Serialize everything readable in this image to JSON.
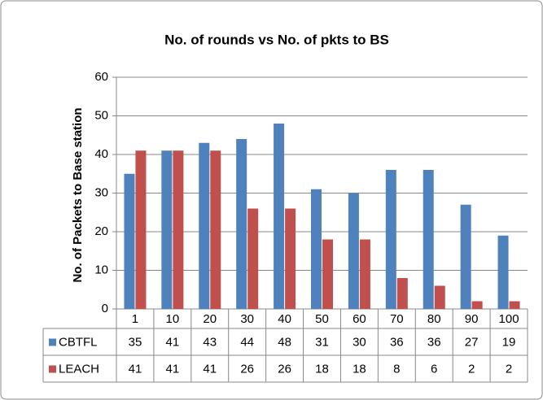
{
  "chart_data": {
    "type": "bar",
    "title": "No. of rounds vs No. of pkts to BS",
    "y_label": "No. of Packets to Base station",
    "categories": [
      "1",
      "10",
      "20",
      "30",
      "40",
      "50",
      "60",
      "70",
      "80",
      "90",
      "100"
    ],
    "series": [
      {
        "name": "CBTFL",
        "color": "#4f81bd",
        "values": [
          35,
          41,
          43,
          44,
          48,
          31,
          30,
          36,
          36,
          27,
          19
        ]
      },
      {
        "name": "LEACH",
        "color": "#c0504d",
        "values": [
          41,
          41,
          41,
          26,
          26,
          18,
          18,
          8,
          6,
          2,
          2
        ]
      }
    ],
    "ylim": [
      0,
      60
    ],
    "yticks": [
      0,
      10,
      20,
      30,
      40,
      50,
      60
    ],
    "grid": true,
    "data_table": true
  }
}
